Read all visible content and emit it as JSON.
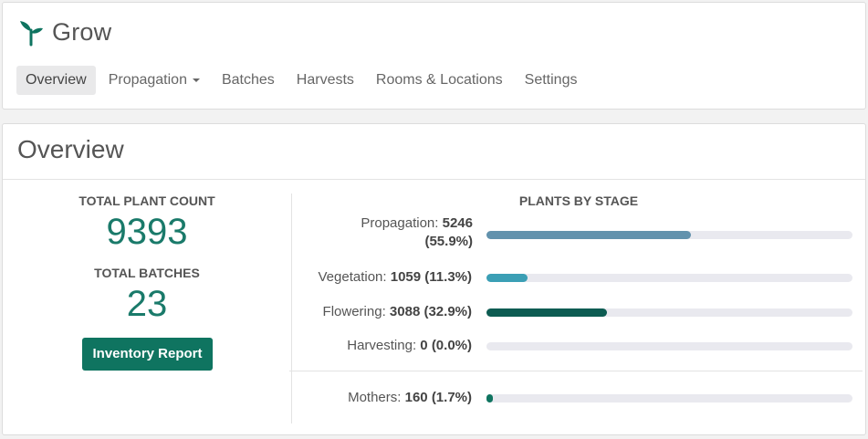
{
  "app": {
    "name": "Grow",
    "icon": "sprout-icon",
    "brand_color": "#0f7460"
  },
  "nav": {
    "items": [
      {
        "label": "Overview",
        "active": true
      },
      {
        "label": "Propagation",
        "dropdown": true
      },
      {
        "label": "Batches"
      },
      {
        "label": "Harvests"
      },
      {
        "label": "Rooms & Locations"
      },
      {
        "label": "Settings"
      }
    ]
  },
  "overview": {
    "title": "Overview",
    "total_plant_label": "TOTAL PLANT COUNT",
    "total_plant_value": "9393",
    "total_batches_label": "TOTAL BATCHES",
    "total_batches_value": "23",
    "inventory_button": "Inventory Report"
  },
  "stages": {
    "title": "PLANTS BY STAGE",
    "rows": [
      {
        "label": "Propagation:",
        "count": "5246",
        "percent_text": "(55.9%)",
        "fraction": 0.559,
        "color": "#6292ad"
      },
      {
        "label": "Vegetation:",
        "count": "1059",
        "percent_text": "(11.3%)",
        "fraction": 0.113,
        "color": "#3b9fb5"
      },
      {
        "label": "Flowering:",
        "count": "3088",
        "percent_text": "(32.9%)",
        "fraction": 0.329,
        "color": "#0d5c52"
      },
      {
        "label": "Harvesting:",
        "count": "0",
        "percent_text": "(0.0%)",
        "fraction": 0.0,
        "color": "#0f7460"
      },
      {
        "label": "Mothers:",
        "count": "160",
        "percent_text": "(1.7%)",
        "fraction": 0.017,
        "color": "#0f7460"
      }
    ]
  }
}
